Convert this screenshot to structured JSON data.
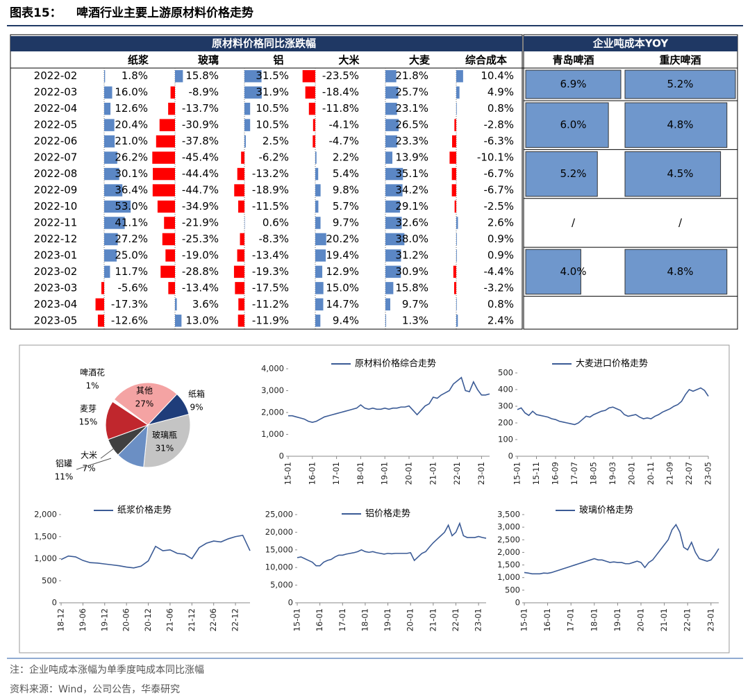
{
  "title": {
    "label": "图表15：",
    "text": "啤酒行业主要上游原材料价格走势"
  },
  "table": {
    "title": "原材料价格同比涨跌幅",
    "dates": [
      "2022-02",
      "2022-03",
      "2022-04",
      "2022-05",
      "2022-06",
      "2022-07",
      "2022-08",
      "2022-09",
      "2022-10",
      "2022-11",
      "2022-12",
      "2023-01",
      "2023-02",
      "2023-03",
      "2023-04",
      "2023-05"
    ],
    "columns": [
      {
        "name": "纸浆",
        "values": [
          1.8,
          16.0,
          12.6,
          20.4,
          21.0,
          26.2,
          30.1,
          36.4,
          53.0,
          41.1,
          27.2,
          25.0,
          11.7,
          -5.6,
          -17.3,
          -12.6
        ],
        "value_labels": [
          "1.8%",
          "16.0%",
          "12.6%",
          "20.4%",
          "21.0%",
          "26.2%",
          "30.1%",
          "36.4%",
          "53.0%",
          "41.1%",
          "27.2%",
          "25.0%",
          "11.7%",
          "-5.6%",
          "-17.3%",
          "-12.6%"
        ]
      },
      {
        "name": "玻璃",
        "values": [
          15.8,
          -8.9,
          -13.7,
          -30.9,
          -37.8,
          -45.4,
          -44.4,
          -44.7,
          -34.9,
          -21.9,
          -25.3,
          -19.0,
          -28.8,
          -13.4,
          3.6,
          13.0
        ],
        "value_labels": [
          "15.8%",
          "-8.9%",
          "-13.7%",
          "-30.9%",
          "-37.8%",
          "-45.4%",
          "-44.4%",
          "-44.7%",
          "-34.9%",
          "-21.9%",
          "-25.3%",
          "-19.0%",
          "-28.8%",
          "-13.4%",
          "3.6%",
          "13.0%"
        ]
      },
      {
        "name": "铝",
        "values": [
          31.5,
          31.9,
          10.5,
          10.5,
          2.5,
          -6.2,
          -13.2,
          -18.9,
          -11.5,
          0.6,
          -8.3,
          -13.4,
          -19.3,
          -17.5,
          -11.2,
          -11.9
        ],
        "value_labels": [
          "31.5%",
          "31.9%",
          "10.5%",
          "10.5%",
          "2.5%",
          "-6.2%",
          "-13.2%",
          "-18.9%",
          "-11.5%",
          "0.6%",
          "-8.3%",
          "-13.4%",
          "-19.3%",
          "-17.5%",
          "-11.2%",
          "-11.9%"
        ]
      },
      {
        "name": "大米",
        "values": [
          -23.5,
          -18.4,
          -11.8,
          -4.1,
          -4.7,
          2.2,
          5.4,
          9.8,
          5.7,
          9.7,
          20.2,
          19.4,
          12.9,
          15.0,
          14.7,
          9.4
        ],
        "value_labels": [
          "-23.5%",
          "-18.4%",
          "-11.8%",
          "-4.1%",
          "-4.7%",
          "2.2%",
          "5.4%",
          "9.8%",
          "5.7%",
          "9.7%",
          "20.2%",
          "19.4%",
          "12.9%",
          "15.0%",
          "14.7%",
          "9.4%"
        ]
      },
      {
        "name": "大麦",
        "values": [
          21.8,
          25.7,
          23.1,
          26.5,
          23.3,
          13.9,
          35.1,
          34.2,
          29.1,
          32.6,
          38.0,
          31.2,
          30.9,
          15.8,
          9.7,
          1.3
        ],
        "value_labels": [
          "21.8%",
          "25.7%",
          "23.1%",
          "26.5%",
          "23.3%",
          "13.9%",
          "35.1%",
          "34.2%",
          "29.1%",
          "32.6%",
          "38.0%",
          "31.2%",
          "30.9%",
          "15.8%",
          "9.7%",
          "1.3%"
        ]
      },
      {
        "name": "综合成本",
        "values": [
          10.4,
          4.9,
          0.8,
          -2.8,
          -6.3,
          -10.1,
          -6.7,
          -6.7,
          -2.5,
          2.6,
          0.9,
          0.9,
          -4.4,
          -3.2,
          0.8,
          2.4
        ],
        "value_labels": [
          "10.4%",
          "4.9%",
          "0.8%",
          "-2.8%",
          "-6.3%",
          "-10.1%",
          "-6.7%",
          "-6.7%",
          "-2.5%",
          "2.6%",
          "0.9%",
          "0.9%",
          "-4.4%",
          "-3.2%",
          "0.8%",
          "2.4%"
        ]
      }
    ]
  },
  "cost_table": {
    "title": "企业吨成本YOY",
    "columns": [
      "青岛啤酒",
      "重庆啤酒"
    ],
    "blocks": [
      {
        "values": [
          6.9,
          5.2
        ],
        "value_labels": [
          "6.9%",
          "5.2%"
        ]
      },
      {
        "values": [
          6.0,
          4.8
        ],
        "value_labels": [
          "6.0%",
          "4.8%"
        ]
      },
      {
        "values": [
          5.2,
          4.5
        ],
        "value_labels": [
          "5.2%",
          "4.5%"
        ]
      },
      {
        "values": [
          null,
          null
        ],
        "value_labels": [
          "/",
          "/"
        ]
      },
      {
        "values": [
          4.0,
          4.8
        ],
        "value_labels": [
          "4.0%",
          "4.8%"
        ]
      }
    ]
  },
  "chart_data": [
    {
      "type": "pie",
      "categories": [
        "其他",
        "纸箱",
        "玻璃瓶",
        "铝罐",
        "大米",
        "麦芽",
        "啤酒花"
      ],
      "values": [
        27,
        9,
        31,
        11,
        7,
        15,
        1
      ],
      "value_labels": [
        "27%",
        "9%",
        "31%",
        "11%",
        "7%",
        "15%",
        "1%"
      ],
      "colors": [
        "#f4a3a3",
        "#1f3d7a",
        "#c4c4c4",
        "#6b8fc4",
        "#404040",
        "#c0272d",
        "#ffffff"
      ]
    },
    {
      "type": "line",
      "x": [
        "15-01",
        "15-03",
        "15-05",
        "15-07",
        "15-09",
        "15-11",
        "16-01",
        "16-03",
        "16-05",
        "16-07",
        "16-09",
        "16-11",
        "17-01",
        "17-03",
        "17-05",
        "17-07",
        "17-09",
        "17-11",
        "18-01",
        "18-03",
        "18-05",
        "18-07",
        "18-09",
        "18-11",
        "19-01",
        "19-03",
        "19-05",
        "19-07",
        "19-09",
        "19-11",
        "20-01",
        "20-03",
        "20-05",
        "20-07",
        "20-09",
        "20-11",
        "21-01",
        "21-03",
        "21-05",
        "21-07",
        "21-09",
        "21-11",
        "22-01",
        "22-03",
        "22-05",
        "22-07",
        "22-09",
        "22-11",
        "23-01",
        "23-03",
        "23-05"
      ],
      "series": [
        {
          "name": "原材料价格综合走势",
          "color": "#3a5a95",
          "values": [
            1850,
            1850,
            1800,
            1750,
            1700,
            1600,
            1550,
            1600,
            1700,
            1800,
            1850,
            1900,
            1950,
            2000,
            2050,
            2100,
            2150,
            2200,
            2350,
            2200,
            2150,
            2200,
            2150,
            2150,
            2200,
            2150,
            2200,
            2200,
            2250,
            2250,
            2300,
            2100,
            1900,
            2100,
            2300,
            2400,
            2700,
            2650,
            2800,
            2900,
            3000,
            3300,
            3450,
            3600,
            3000,
            2950,
            3400,
            3050,
            2800,
            2800,
            2850
          ]
        }
      ],
      "ylim": [
        0,
        4000
      ],
      "yticks": [
        0,
        {
          "value": 1000,
          "label": "1,000"
        },
        {
          "value": 2000,
          "label": "2,000"
        },
        {
          "value": 3000,
          "label": "3,000"
        },
        {
          "value": 4000,
          "label": "4,000"
        }
      ],
      "xticks": [
        "15-01",
        "16-01",
        "17-01",
        "18-01",
        "19-01",
        "20-01",
        "21-01",
        "22-01",
        "23-01"
      ]
    },
    {
      "type": "line",
      "x": [
        "15-01",
        "15-03",
        "15-05",
        "15-07",
        "15-09",
        "15-11",
        "16-01",
        "16-03",
        "16-05",
        "16-07",
        "16-09",
        "16-11",
        "17-01",
        "17-03",
        "17-05",
        "17-07",
        "17-09",
        "17-11",
        "18-01",
        "18-03",
        "18-05",
        "18-07",
        "18-09",
        "18-11",
        "19-01",
        "19-03",
        "19-05",
        "19-07",
        "19-09",
        "19-11",
        "20-01",
        "20-03",
        "20-05",
        "20-07",
        "20-09",
        "20-11",
        "21-01",
        "21-03",
        "21-05",
        "21-07",
        "21-09",
        "21-11",
        "22-01",
        "22-03",
        "22-05",
        "22-07",
        "22-09",
        "22-11",
        "23-01",
        "23-03",
        "23-05"
      ],
      "series": [
        {
          "name": "大麦进口价格走势",
          "color": "#3a5a95",
          "values": [
            280,
            290,
            260,
            245,
            270,
            250,
            245,
            240,
            235,
            225,
            220,
            210,
            205,
            200,
            195,
            190,
            200,
            220,
            240,
            235,
            250,
            260,
            270,
            275,
            290,
            295,
            285,
            275,
            250,
            240,
            245,
            250,
            235,
            225,
            230,
            225,
            240,
            250,
            265,
            275,
            285,
            300,
            310,
            330,
            370,
            400,
            390,
            400,
            410,
            395,
            360
          ]
        }
      ],
      "ylim": [
        0,
        500
      ],
      "yticks": [
        0,
        100,
        200,
        300,
        400,
        500
      ],
      "xticks": [
        "15-01",
        "15-11",
        "16-09",
        "17-07",
        "18-05",
        "19-03",
        "20-01",
        "20-11",
        "21-09",
        "22-07",
        "23-05"
      ]
    },
    {
      "type": "line",
      "x": [
        "18-12",
        "19-02",
        "19-04",
        "19-06",
        "19-08",
        "19-10",
        "19-12",
        "20-02",
        "20-04",
        "20-06",
        "20-08",
        "20-10",
        "20-12",
        "21-02",
        "21-04",
        "21-06",
        "21-08",
        "21-10",
        "21-12",
        "22-02",
        "22-04",
        "22-06",
        "22-08",
        "22-10",
        "22-12",
        "23-02",
        "23-04"
      ],
      "series": [
        {
          "name": "纸浆价格走势",
          "color": "#3a5a95",
          "values": [
            980,
            1060,
            1040,
            960,
            910,
            900,
            880,
            860,
            840,
            810,
            790,
            830,
            950,
            1280,
            1180,
            1200,
            1120,
            1100,
            1000,
            1250,
            1350,
            1400,
            1380,
            1450,
            1500,
            1530,
            1180
          ]
        }
      ],
      "ylim": [
        0,
        2000
      ],
      "yticks": [
        0,
        500,
        {
          "value": 1000,
          "label": "1,000"
        },
        {
          "value": 1500,
          "label": "1,500"
        },
        {
          "value": 2000,
          "label": "2,000"
        }
      ],
      "xticks": [
        "18-12",
        "19-06",
        "19-12",
        "20-06",
        "20-12",
        "21-06",
        "21-12",
        "22-06",
        "22-12"
      ]
    },
    {
      "type": "line",
      "x": [
        "15-01",
        "15-03",
        "15-05",
        "15-07",
        "15-09",
        "15-11",
        "16-01",
        "16-03",
        "16-05",
        "16-07",
        "16-09",
        "16-11",
        "17-01",
        "17-03",
        "17-05",
        "17-07",
        "17-09",
        "17-11",
        "18-01",
        "18-03",
        "18-05",
        "18-07",
        "18-09",
        "18-11",
        "19-01",
        "19-03",
        "19-05",
        "19-07",
        "19-09",
        "19-11",
        "20-01",
        "20-03",
        "20-05",
        "20-07",
        "20-09",
        "20-11",
        "21-01",
        "21-03",
        "21-05",
        "21-07",
        "21-09",
        "21-11",
        "22-01",
        "22-03",
        "22-05",
        "22-07",
        "22-09",
        "22-11",
        "23-01",
        "23-03",
        "23-05"
      ],
      "series": [
        {
          "name": "铝价格走势",
          "color": "#3a5a95",
          "values": [
            12800,
            13000,
            12500,
            12000,
            11500,
            10500,
            10500,
            11500,
            12000,
            12300,
            13000,
            13500,
            13500,
            13800,
            14000,
            14200,
            14500,
            15000,
            14500,
            14300,
            14500,
            14200,
            14000,
            13800,
            14000,
            13900,
            14000,
            14000,
            14000,
            14000,
            14200,
            12000,
            13000,
            14000,
            14500,
            15800,
            17000,
            18000,
            19000,
            20000,
            22000,
            19000,
            20000,
            22500,
            19000,
            18500,
            18500,
            18500,
            18800,
            18500,
            18300
          ]
        }
      ],
      "ylim": [
        0,
        25000
      ],
      "yticks": [
        0,
        {
          "value": 5000,
          "label": "5,000"
        },
        {
          "value": 10000,
          "label": "10,000"
        },
        {
          "value": 15000,
          "label": "15,000"
        },
        {
          "value": 20000,
          "label": "20,000"
        },
        {
          "value": 25000,
          "label": "25,000"
        }
      ],
      "xticks": [
        "15-01",
        "16-01",
        "17-01",
        "18-01",
        "19-01",
        "20-01",
        "21-01",
        "22-01",
        "23-01"
      ]
    },
    {
      "type": "line",
      "x": [
        "15-01",
        "15-03",
        "15-05",
        "15-07",
        "15-09",
        "15-11",
        "16-01",
        "16-03",
        "16-05",
        "16-07",
        "16-09",
        "16-11",
        "17-01",
        "17-03",
        "17-05",
        "17-07",
        "17-09",
        "17-11",
        "18-01",
        "18-03",
        "18-05",
        "18-07",
        "18-09",
        "18-11",
        "19-01",
        "19-03",
        "19-05",
        "19-07",
        "19-09",
        "19-11",
        "20-01",
        "20-03",
        "20-05",
        "20-07",
        "20-09",
        "20-11",
        "21-01",
        "21-03",
        "21-05",
        "21-07",
        "21-09",
        "21-11",
        "22-01",
        "22-03",
        "22-05",
        "22-07",
        "22-09",
        "22-11",
        "23-01",
        "23-03",
        "23-05"
      ],
      "series": [
        {
          "name": "玻璃价格走势",
          "color": "#3a5a95",
          "values": [
            1200,
            1180,
            1150,
            1150,
            1150,
            1180,
            1170,
            1200,
            1250,
            1300,
            1350,
            1400,
            1450,
            1500,
            1550,
            1600,
            1650,
            1700,
            1750,
            1700,
            1700,
            1650,
            1600,
            1620,
            1600,
            1600,
            1550,
            1550,
            1600,
            1650,
            1600,
            1400,
            1600,
            1700,
            1900,
            2100,
            2300,
            2500,
            2900,
            3100,
            2800,
            2200,
            2100,
            2400,
            2000,
            1750,
            1700,
            1650,
            1700,
            1900,
            2150
          ]
        }
      ],
      "ylim": [
        0,
        3500
      ],
      "yticks": [
        0,
        500,
        {
          "value": 1000,
          "label": "1,000"
        },
        {
          "value": 1500,
          "label": "1,500"
        },
        {
          "value": 2000,
          "label": "2,000"
        },
        {
          "value": 2500,
          "label": "2,500"
        },
        {
          "value": 3000,
          "label": "3,000"
        },
        {
          "value": 3500,
          "label": "3,500"
        }
      ],
      "xticks": [
        "15-01",
        "16-01",
        "17-01",
        "18-01",
        "19-01",
        "20-01",
        "21-01",
        "22-01",
        "23-01"
      ]
    }
  ],
  "notes": [
    "注：企业吨成本涨幅为单季度吨成本同比涨幅",
    "资料来源：Wind，公司公告，华泰研究"
  ]
}
